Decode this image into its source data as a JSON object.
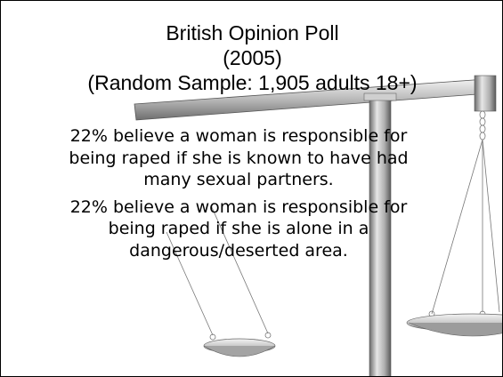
{
  "slide": {
    "title": {
      "line1": "British Opinion Poll",
      "line2": "(2005)",
      "line3": "(Random Sample: 1,905 adults 18+)"
    },
    "findings": [
      "22% believe a woman is responsible for being raped if she is known to have had many sexual partners.",
      "22% believe a woman is responsible for being raped if she is alone in a dangerous/deserted area."
    ]
  }
}
